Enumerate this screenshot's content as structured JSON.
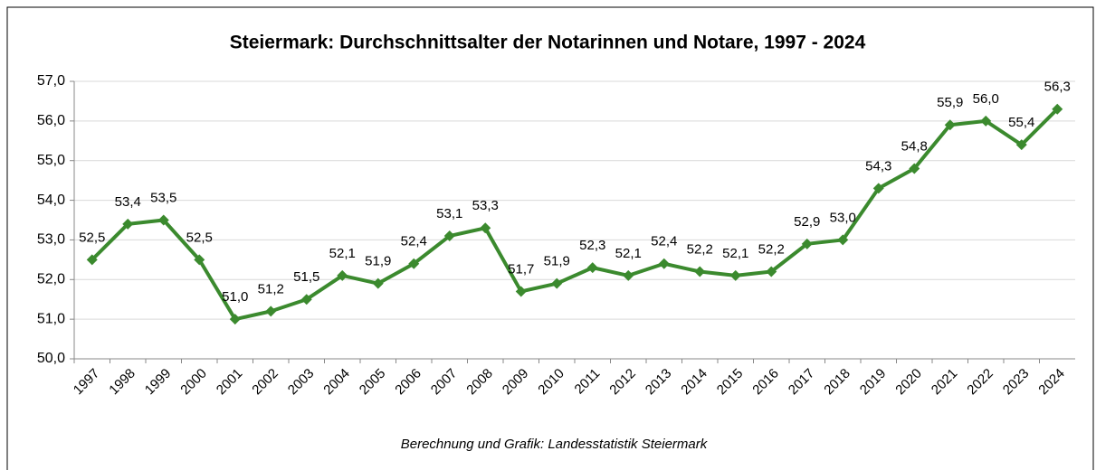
{
  "chart_data": {
    "type": "line",
    "title": "Steiermark: Durchschnittsalter der Notarinnen und Notare, 1997 - 2024",
    "source": "Berechnung und Grafik: Landesstatistik Steiermark",
    "categories": [
      "1997",
      "1998",
      "1999",
      "2000",
      "2001",
      "2002",
      "2003",
      "2004",
      "2005",
      "2006",
      "2007",
      "2008",
      "2009",
      "2010",
      "2011",
      "2012",
      "2013",
      "2014",
      "2015",
      "2016",
      "2017",
      "2018",
      "2019",
      "2020",
      "2021",
      "2022",
      "2023",
      "2024"
    ],
    "values": [
      52.5,
      53.4,
      53.5,
      52.5,
      51.0,
      51.2,
      51.5,
      52.1,
      51.9,
      52.4,
      53.1,
      53.3,
      51.7,
      51.9,
      52.3,
      52.1,
      52.4,
      52.2,
      52.1,
      52.2,
      52.9,
      53.0,
      54.3,
      54.8,
      55.9,
      56.0,
      55.4,
      56.3
    ],
    "value_labels": [
      "52,5",
      "53,4",
      "53,5",
      "52,5",
      "51,0",
      "51,2",
      "51,5",
      "52,1",
      "51,9",
      "52,4",
      "53,1",
      "53,3",
      "51,7",
      "51,9",
      "52,3",
      "52,1",
      "52,4",
      "52,2",
      "52,1",
      "52,2",
      "52,9",
      "53,0",
      "54,3",
      "54,8",
      "55,9",
      "56,0",
      "55,4",
      "56,3"
    ],
    "color": "#3b8a2e",
    "ylim": [
      50,
      57
    ],
    "yticks": [
      {
        "value": 50,
        "label": "50,0"
      },
      {
        "value": 51,
        "label": "51,0"
      },
      {
        "value": 52,
        "label": "52,0"
      },
      {
        "value": 53,
        "label": "53,0"
      },
      {
        "value": 54,
        "label": "54,0"
      },
      {
        "value": 55,
        "label": "55,0"
      },
      {
        "value": 56,
        "label": "56,0"
      },
      {
        "value": 57,
        "label": "57,0"
      }
    ],
    "grid": true
  }
}
